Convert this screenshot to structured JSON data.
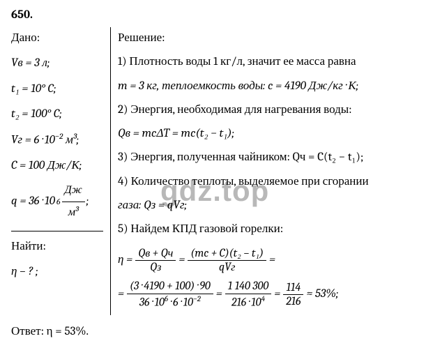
{
  "problem_number": "650.",
  "given_heading": "Дано:",
  "given": {
    "l1": "Vв = 3 л;",
    "l2": "t₁ = 10° C;",
    "l3": "t₂ = 100° C;",
    "l4_pre": "Vг = 6 · 10",
    "l4_exp": "−2",
    "l4_post": " м³;",
    "l5": "C = 100 Дж/К;",
    "l6_pre": "q = 36 · 10",
    "l6_exp": "6",
    "l6_frac_num": "Дж",
    "l6_frac_den": "м³",
    "l6_post": ";"
  },
  "find_heading": "Найти:",
  "find": "η – ? ;",
  "solution_heading": "Решение:",
  "solution": {
    "s1": "1) Плотность воды 1 кг/л, значит ее масса равна",
    "s1b": "m = 3 кг, теплоемкость воды: c = 4190 Дж/кг · К;",
    "s2": "2) Энергия, необходимая для нагревания воды:",
    "s2b": "Qв = mcΔT = mc(t₂ − t₁);",
    "s3": "3) Энергия, полученная чайником: Qч = C(t₂ − t₁);",
    "s4": "4) Количество теплоты, выделяемое при сгорании",
    "s4b": "газа: Qз = qVг;",
    "s5": "5) Найдем КПД газовой горелки:",
    "eq_eta": "η =",
    "eq_f1_num": "Qв + Qч",
    "eq_f1_den": "Qз",
    "eq_eq": "=",
    "eq_f2_num": "(mc + C)(t₂ − t₁)",
    "eq_f2_den": "qVг",
    "eq2_pre": "=",
    "eq2_f1_num": "(3 · 4190 + 100) · 90",
    "eq2_f1_den_a": "36 · 10",
    "eq2_f1_den_exp1": "6",
    "eq2_f1_den_b": " · 6 · 10",
    "eq2_f1_den_exp2": "−2",
    "eq2_f2_num": "1 140 300",
    "eq2_f2_den_a": "216 · 10",
    "eq2_f2_den_exp": "4",
    "eq2_f3_num": "114",
    "eq2_f3_den": "216",
    "eq2_post": "≈ 53%;"
  },
  "answer": "Ответ: η = 53%.",
  "watermark": "gdz.top",
  "colors": {
    "text": "#000000",
    "bg": "#ffffff",
    "watermark": "rgba(0,0,0,0.28)"
  }
}
